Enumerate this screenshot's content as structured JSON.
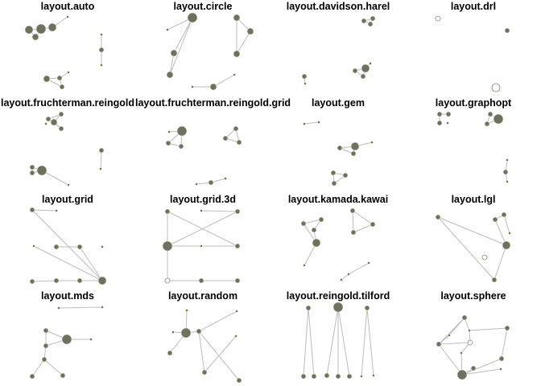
{
  "colors": {
    "node": "#70705e",
    "edge": "#bdbdbd",
    "background": "#ffffff"
  },
  "panels": [
    {
      "title": "layout.auto"
    },
    {
      "title": "layout.circle"
    },
    {
      "title": "layout.davidson.harel"
    },
    {
      "title": "layout.drl"
    },
    {
      "title": "layout.fruchterman.reingold"
    },
    {
      "title": "layout.fruchterman.reingold.grid"
    },
    {
      "title": "layout.gem"
    },
    {
      "title": "layout.graphopt"
    },
    {
      "title": "layout.grid"
    },
    {
      "title": "layout.grid.3d"
    },
    {
      "title": "layout.kamada.kawai"
    },
    {
      "title": "layout.lgl"
    },
    {
      "title": "layout.mds"
    },
    {
      "title": "layout.random"
    },
    {
      "title": "layout.reingold.tilford"
    },
    {
      "title": "layout.sphere"
    }
  ]
}
